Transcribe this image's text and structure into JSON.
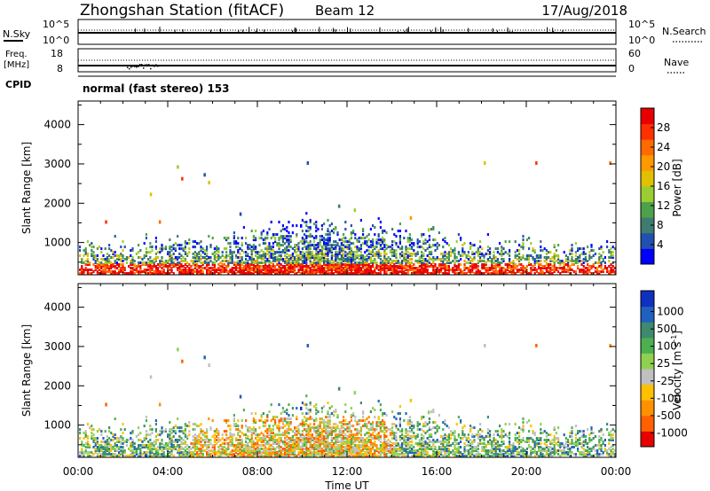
{
  "header": {
    "station": "Zhongshan Station (fitACF)",
    "beam": "Beam 12",
    "date": "17/Aug/2018"
  },
  "status_panels": {
    "nsky": {
      "label": "N.Sky",
      "ticks": [
        "10^5",
        "10^0"
      ]
    },
    "nsearch": {
      "label": "N.Search",
      "ticks": [
        "10^5",
        "10^0"
      ]
    },
    "freq": {
      "label_line1": "Freq.",
      "label_line2": "[MHz]",
      "ticks": [
        "18",
        "8"
      ]
    },
    "nave": {
      "label": "Nave",
      "ticks": [
        "60",
        "0"
      ]
    },
    "cpid": {
      "label": "CPID",
      "mode": "normal (fast stereo) 153"
    }
  },
  "chart_data": [
    {
      "type": "heatmap",
      "name": "Power",
      "xlabel": "Time UT",
      "ylabel": "Slant Range [km]",
      "xlim": [
        0,
        24
      ],
      "ylim": [
        180,
        4600
      ],
      "x_ticks": [
        "00:00",
        "04:00",
        "08:00",
        "12:00",
        "16:00",
        "20:00",
        "00:00"
      ],
      "y_ticks": [
        "1000",
        "2000",
        "3000",
        "4000"
      ],
      "colorbar": {
        "label": "Power [dB]",
        "ticks": [
          "4",
          "8",
          "12",
          "16",
          "20",
          "24",
          "28"
        ],
        "colors": [
          "#0000ff",
          "#2050b0",
          "#3d7c6e",
          "#4da14a",
          "#9acd32",
          "#e0c000",
          "#ff9900",
          "#ff6a00",
          "#ff3000",
          "#e80000"
        ]
      }
    },
    {
      "type": "heatmap",
      "name": "Velocity",
      "xlabel": "Time UT",
      "ylabel": "Slant Range [km]",
      "xlim": [
        0,
        24
      ],
      "ylim": [
        180,
        4600
      ],
      "x_ticks": [
        "00:00",
        "04:00",
        "08:00",
        "12:00",
        "16:00",
        "20:00",
        "00:00"
      ],
      "y_ticks": [
        "1000",
        "2000",
        "3000",
        "4000"
      ],
      "colorbar": {
        "label": "Velocity [m s",
        "label_sup": "-1",
        "label_end": "]",
        "ticks": [
          "1000",
          "500",
          "100",
          "25",
          "-25",
          "-100",
          "-500",
          "-1000"
        ],
        "colors": [
          "#1030c0",
          "#2060c0",
          "#3d8a6e",
          "#4caf50",
          "#8fd14f",
          "#c0c0c0",
          "#ffc000",
          "#ff9000",
          "#ff6000",
          "#e80000"
        ]
      }
    }
  ]
}
